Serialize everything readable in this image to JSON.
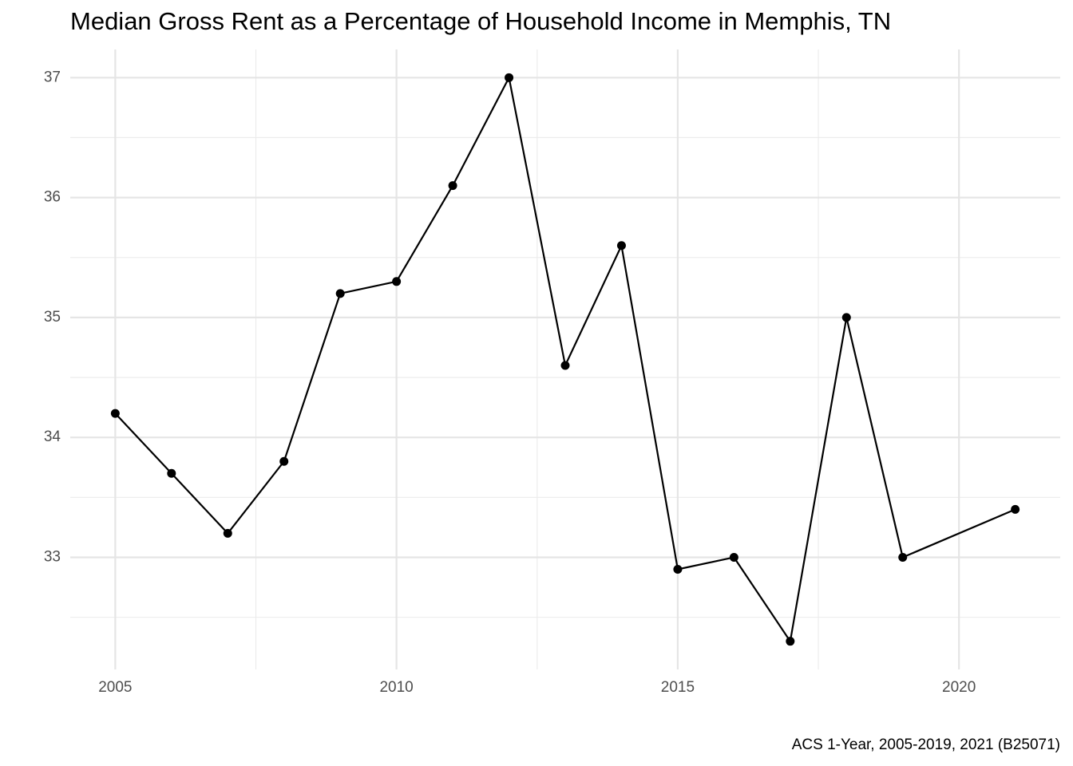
{
  "chart_data": {
    "type": "line",
    "title": "Median Gross Rent as a Percentage of Household Income in Memphis, TN",
    "caption": "ACS 1-Year, 2005-2019, 2021 (B25071)",
    "x": [
      2005,
      2006,
      2007,
      2008,
      2009,
      2010,
      2011,
      2012,
      2013,
      2014,
      2015,
      2016,
      2017,
      2018,
      2019,
      2021
    ],
    "values": [
      34.2,
      33.7,
      33.2,
      33.8,
      35.2,
      35.3,
      36.1,
      37.0,
      34.6,
      35.6,
      32.9,
      33.0,
      32.3,
      35.0,
      33.0,
      33.4
    ],
    "color": "#000000",
    "xlim": [
      2004.2,
      2021.8
    ],
    "xticks": [
      2005,
      2010,
      2015,
      2020
    ],
    "x_minor_ticks": [
      2007.5,
      2012.5,
      2017.5
    ],
    "ylim": [
      32.065,
      37.235
    ],
    "yticks": [
      33,
      34,
      35,
      36,
      37
    ],
    "y_minor_ticks": [
      32.5,
      33.5,
      34.5,
      35.5,
      36.5
    ],
    "grid": true
  }
}
